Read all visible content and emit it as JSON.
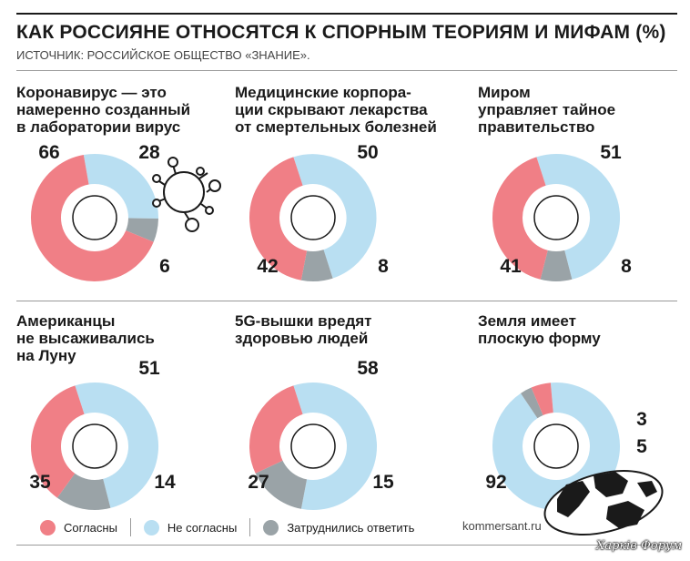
{
  "title": "КАК РОССИЯНЕ ОТНОСЯТСЯ К СПОРНЫМ ТЕОРИЯМ И МИФАМ (%)",
  "source": "ИСТОЧНИК: РОССИЙСКОЕ ОБЩЕСТВО «ЗНАНИЕ».",
  "colors": {
    "agree": "#f07f86",
    "disagree": "#b9dff2",
    "unsure": "#9aa3a7"
  },
  "legend": [
    "Согласны",
    "Не согласны",
    "Затруднились ответить"
  ],
  "site": "kommersant.ru",
  "watermark": "Харків Форум",
  "decorations": [
    "virus-icon",
    "globe-icon"
  ],
  "chart_data": [
    {
      "type": "pie",
      "title": "Коронавирус — это\nнамеренно созданный\nв лаборатории вирус",
      "series": [
        {
          "name": "Согласны",
          "value": 66
        },
        {
          "name": "Не согласны",
          "value": 28
        },
        {
          "name": "Затруднились ответить",
          "value": 6
        }
      ],
      "labels": [
        "66",
        "28",
        "6"
      ]
    },
    {
      "type": "pie",
      "title": "Медицинские корпора-\nции скрывают лекарства\nот смертельных болезней",
      "series": [
        {
          "name": "Согласны",
          "value": 42
        },
        {
          "name": "Не согласны",
          "value": 50
        },
        {
          "name": "Затруднились ответить",
          "value": 8
        }
      ],
      "labels": [
        "42",
        "50",
        "8"
      ]
    },
    {
      "type": "pie",
      "title": "Миром\nуправляет тайное\nправительство",
      "series": [
        {
          "name": "Согласны",
          "value": 41
        },
        {
          "name": "Не согласны",
          "value": 51
        },
        {
          "name": "Затруднились ответить",
          "value": 8
        }
      ],
      "labels": [
        "41",
        "51",
        "8"
      ]
    },
    {
      "type": "pie",
      "title": "Американцы\nне высаживались\nна Луну",
      "series": [
        {
          "name": "Согласны",
          "value": 35
        },
        {
          "name": "Не согласны",
          "value": 51
        },
        {
          "name": "Затруднились ответить",
          "value": 14
        }
      ],
      "labels": [
        "35",
        "51",
        "14"
      ]
    },
    {
      "type": "pie",
      "title": "5G-вышки вредят\nздоровью людей",
      "series": [
        {
          "name": "Согласны",
          "value": 27
        },
        {
          "name": "Не согласны",
          "value": 58
        },
        {
          "name": "Затруднились ответить",
          "value": 15
        }
      ],
      "labels": [
        "27",
        "58",
        "15"
      ]
    },
    {
      "type": "pie",
      "title": "Земля имеет\nплоскую форму",
      "series": [
        {
          "name": "Согласны",
          "value": 5
        },
        {
          "name": "Не согласны",
          "value": 92
        },
        {
          "name": "Затруднились ответить",
          "value": 3
        }
      ],
      "labels": [
        "5",
        "92",
        "3"
      ]
    }
  ]
}
